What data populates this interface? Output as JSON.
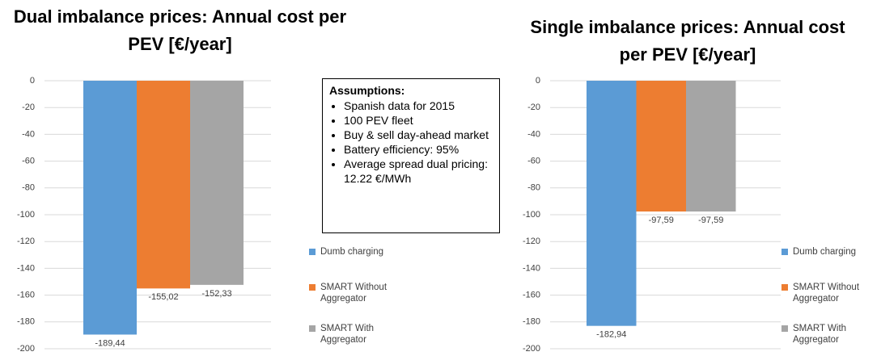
{
  "chart_data": [
    {
      "type": "bar",
      "title": "Dual imbalance prices: Annual cost per PEV [€/year]",
      "series": [
        {
          "name": "Dumb charging",
          "color": "#5b9bd5",
          "values": [
            -189.44
          ],
          "value_labels": [
            "-189,44"
          ]
        },
        {
          "name": "SMART Without Aggregator",
          "color": "#ed7d31",
          "values": [
            -155.02
          ],
          "value_labels": [
            "-155,02"
          ]
        },
        {
          "name": "SMART With Aggregator",
          "color": "#a5a5a5",
          "values": [
            -152.33
          ],
          "value_labels": [
            "-152,33"
          ]
        }
      ],
      "ylim": [
        -200,
        0
      ],
      "yticks": [
        0,
        -20,
        -40,
        -60,
        -80,
        -100,
        -120,
        -140,
        -160,
        -180,
        -200
      ],
      "grid": true,
      "legend": "right"
    },
    {
      "type": "bar",
      "title": "Single imbalance prices: Annual cost per PEV [€/year]",
      "series": [
        {
          "name": "Dumb charging",
          "color": "#5b9bd5",
          "values": [
            -182.94
          ],
          "value_labels": [
            "-182,94"
          ]
        },
        {
          "name": "SMART Without Aggregator",
          "color": "#ed7d31",
          "values": [
            -97.59
          ],
          "value_labels": [
            "-97,59"
          ]
        },
        {
          "name": "SMART With Aggregator",
          "color": "#a5a5a5",
          "values": [
            -97.59
          ],
          "value_labels": [
            "-97,59"
          ]
        }
      ],
      "ylim": [
        -200,
        0
      ],
      "yticks": [
        0,
        -20,
        -40,
        -60,
        -80,
        -100,
        -120,
        -140,
        -160,
        -180,
        -200
      ],
      "grid": true,
      "legend": "right"
    }
  ],
  "assumptions": {
    "title": "Assumptions:",
    "items": [
      "Spanish data for 2015",
      "100 PEV fleet",
      "Buy & sell day-ahead market",
      "Battery efficiency: 95%",
      "Average spread dual pricing: 12.22 €/MWh"
    ]
  }
}
